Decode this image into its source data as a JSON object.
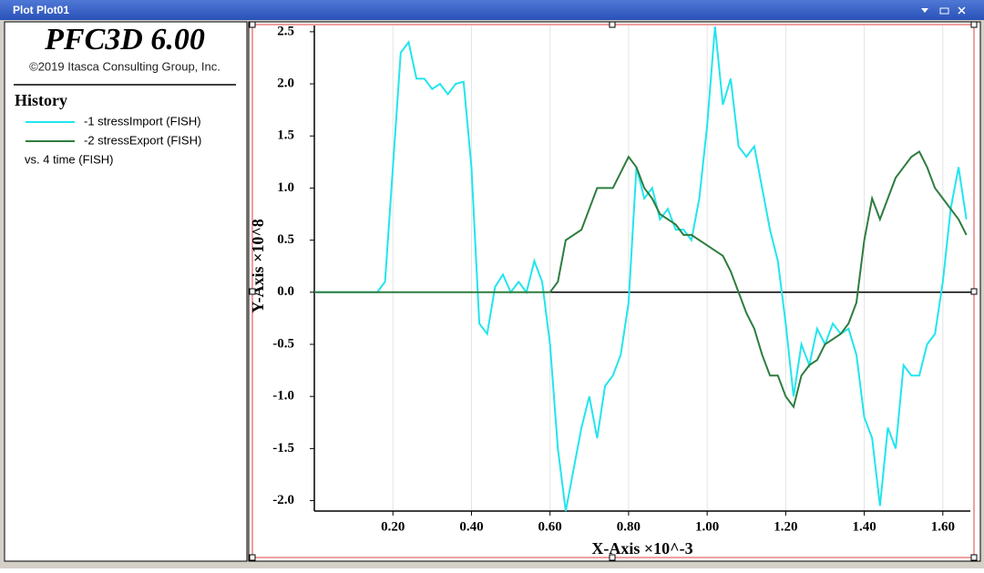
{
  "window": {
    "title": "Plot Plot01"
  },
  "header": {
    "title": "PFC3D 6.00",
    "copyright": "©2019 Itasca Consulting Group, Inc."
  },
  "legend": {
    "title": "History",
    "footer": "vs. 4 time (FISH)"
  },
  "chart_data": {
    "type": "line",
    "x_label": "X-Axis ×10^-3",
    "y_label": "Y-Axis ×10^8",
    "x": [
      0,
      0.16,
      0.18,
      0.2,
      0.22,
      0.24,
      0.26,
      0.28,
      0.3,
      0.32,
      0.34,
      0.36,
      0.38,
      0.4,
      0.42,
      0.44,
      0.46,
      0.48,
      0.5,
      0.52,
      0.54,
      0.56,
      0.58,
      0.6,
      0.62,
      0.64,
      0.66,
      0.68,
      0.7,
      0.72,
      0.74,
      0.76,
      0.78,
      0.8,
      0.82,
      0.84,
      0.86,
      0.88,
      0.9,
      0.92,
      0.94,
      0.96,
      0.98,
      1.0,
      1.02,
      1.04,
      1.06,
      1.08,
      1.1,
      1.12,
      1.14,
      1.16,
      1.18,
      1.2,
      1.22,
      1.24,
      1.26,
      1.28,
      1.3,
      1.32,
      1.34,
      1.36,
      1.38,
      1.4,
      1.42,
      1.44,
      1.46,
      1.48,
      1.5,
      1.52,
      1.54,
      1.56,
      1.58,
      1.6,
      1.62,
      1.64,
      1.66
    ],
    "series": [
      {
        "name": "-1 stressImport (FISH)",
        "color": "#22e5ee",
        "values": [
          0,
          0,
          0.1,
          1.2,
          2.3,
          2.4,
          2.05,
          2.05,
          1.95,
          2.0,
          1.9,
          2.0,
          2.02,
          1.2,
          -0.3,
          -0.4,
          0.05,
          0.17,
          0.0,
          0.1,
          0.0,
          0.3,
          0.1,
          -0.5,
          -1.5,
          -2.1,
          -1.7,
          -1.3,
          -1.0,
          -1.4,
          -0.9,
          -0.8,
          -0.6,
          -0.1,
          1.2,
          0.9,
          1.0,
          0.7,
          0.8,
          0.6,
          0.6,
          0.5,
          0.9,
          1.6,
          2.55,
          1.8,
          2.05,
          1.4,
          1.3,
          1.4,
          1.0,
          0.6,
          0.3,
          -0.3,
          -1.0,
          -0.5,
          -0.7,
          -0.35,
          -0.5,
          -0.3,
          -0.4,
          -0.35,
          -0.6,
          -1.2,
          -1.4,
          -2.05,
          -1.3,
          -1.5,
          -0.7,
          -0.8,
          -0.8,
          -0.5,
          -0.4,
          0.1,
          0.8,
          1.2,
          0.7
        ]
      },
      {
        "name": "-2 stressExport (FISH)",
        "color": "#2e7d3e",
        "values": [
          0,
          0,
          0,
          0,
          0,
          0,
          0,
          0,
          0,
          0,
          0,
          0,
          0,
          0,
          0,
          0,
          0,
          0,
          0,
          0,
          0,
          0,
          0,
          0,
          0.1,
          0.5,
          0.55,
          0.6,
          0.8,
          1.0,
          1.0,
          1.0,
          1.15,
          1.3,
          1.2,
          1.0,
          0.9,
          0.75,
          0.7,
          0.65,
          0.55,
          0.55,
          0.5,
          0.45,
          0.4,
          0.35,
          0.2,
          0.0,
          -0.2,
          -0.35,
          -0.6,
          -0.8,
          -0.8,
          -1.0,
          -1.1,
          -0.8,
          -0.7,
          -0.65,
          -0.5,
          -0.45,
          -0.4,
          -0.3,
          -0.1,
          0.5,
          0.9,
          0.7,
          0.9,
          1.1,
          1.2,
          1.3,
          1.35,
          1.2,
          1.0,
          0.9,
          0.8,
          0.7,
          0.55
        ]
      }
    ],
    "xlim": [
      0,
      1.67
    ],
    "ylim": [
      -2.1,
      2.56
    ],
    "xticks": [
      {
        "value": 0.2,
        "label": "0.20"
      },
      {
        "value": 0.4,
        "label": "0.40"
      },
      {
        "value": 0.6,
        "label": "0.60"
      },
      {
        "value": 0.8,
        "label": "0.80"
      },
      {
        "value": 1.0,
        "label": "1.00"
      },
      {
        "value": 1.2,
        "label": "1.20"
      },
      {
        "value": 1.4,
        "label": "1.40"
      },
      {
        "value": 1.6,
        "label": "1.60"
      }
    ],
    "yticks": [
      2.5,
      {
        "value": 2.0,
        "label": "2.0"
      },
      1.5,
      {
        "value": 1.0,
        "label": "1.0"
      },
      0.5,
      {
        "value": 0.0,
        "label": "0.0"
      },
      -0.5,
      {
        "value": -1.0,
        "label": "-1.0"
      },
      -1.5,
      {
        "value": -2.0,
        "label": "-2.0"
      }
    ],
    "grid": true
  }
}
